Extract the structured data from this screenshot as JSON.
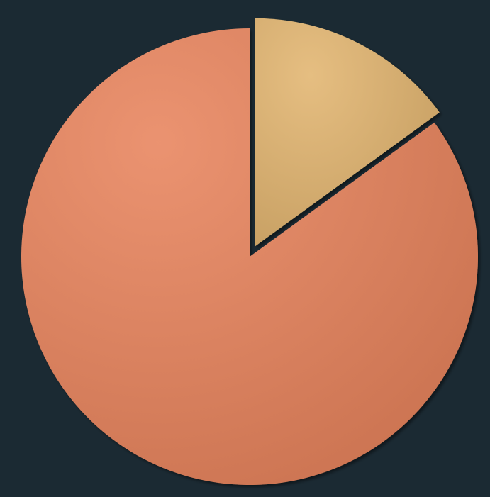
{
  "chart_data": {
    "type": "pie",
    "values": [
      15,
      85
    ],
    "colors": [
      "#e2b56f",
      "#e8845d"
    ]
  }
}
